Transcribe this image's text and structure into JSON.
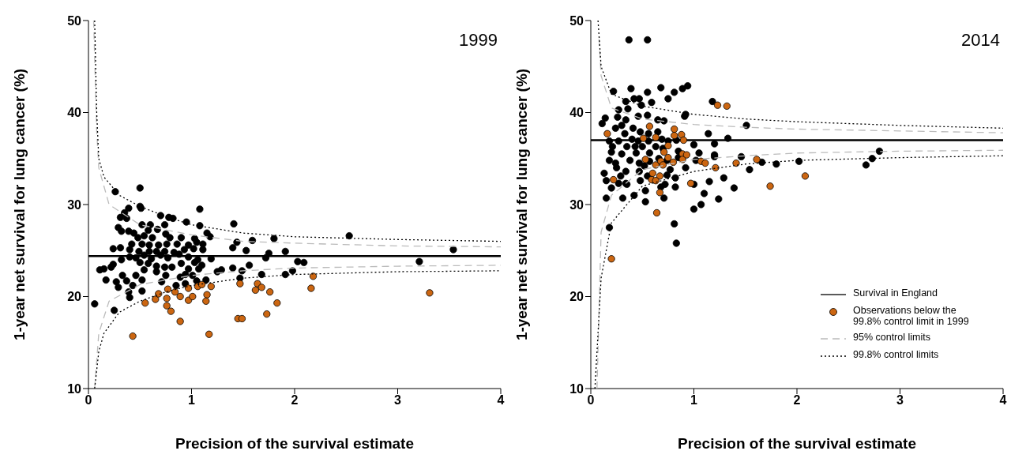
{
  "chart_data": [
    {
      "type": "scatter",
      "annotations": [
        "1999"
      ],
      "xlabel": "Precision of the survival estimate",
      "ylabel": "1-year net survival for lung cancer (%)",
      "xlim": [
        0,
        4
      ],
      "xticks": [
        0,
        1,
        2,
        3,
        4
      ],
      "ylim": [
        10,
        50
      ],
      "yticks": [
        10,
        20,
        30,
        40,
        50
      ],
      "grid": false,
      "legend": false,
      "marker": "circle",
      "ref_lines": [
        {
          "axis": "y",
          "value": 24.4,
          "color": "#000000",
          "line_style": "solid"
        }
      ],
      "series": [
        {
          "color": "#000000",
          "x": [
            0.5,
            0.26,
            0.39,
            0.5,
            0.51,
            1.08,
            0.7,
            0.78,
            0.82,
            0.35,
            0.31,
            0.37,
            0.52,
            0.6,
            0.74,
            0.95,
            1.08,
            1.41,
            0.29,
            0.32,
            0.39,
            0.44,
            0.58,
            0.67,
            0.75,
            1.15,
            0.48,
            0.54,
            0.62,
            0.79,
            0.9,
            1.03,
            1.18,
            1.59,
            1.8,
            1.44,
            1.4,
            1.53,
            0.42,
            0.52,
            0.59,
            0.68,
            0.76,
            0.86,
            0.97,
            1.05,
            1.11,
            0.24,
            0.31,
            0.4,
            0.49,
            0.59,
            0.66,
            0.74,
            0.83,
            0.93,
            1.02,
            1.11,
            1.75,
            1.91,
            0.4,
            0.46,
            0.54,
            0.61,
            0.7,
            0.77,
            0.88,
            0.97,
            1.06,
            1.19,
            1.72,
            0.32,
            0.24,
            0.5,
            0.58,
            0.66,
            0.74,
            0.81,
            0.9,
            1.03,
            1.1,
            2.03,
            2.09,
            0.11,
            0.15,
            0.22,
            0.54,
            0.66,
            0.97,
            1.07,
            1.25,
            1.29,
            1.4,
            1.56,
            1.49,
            0.17,
            0.27,
            0.33,
            0.37,
            0.46,
            0.52,
            0.75,
            0.89,
            0.94,
            1.01,
            1.05,
            1.14,
            1.47,
            1.68,
            1.91,
            1.98,
            0.29,
            0.43,
            0.52,
            0.71,
            0.85,
            0.94,
            0.4,
            0.06,
            0.25,
            0.39,
            2.53,
            3.21,
            3.54
          ],
          "values": [
            31.8,
            31.4,
            29.6,
            29.8,
            29.6,
            29.5,
            28.8,
            28.6,
            28.5,
            29.1,
            28.6,
            28.5,
            27.8,
            27.8,
            27.8,
            28.1,
            27.7,
            27.9,
            27.5,
            27.1,
            27.1,
            26.9,
            27.2,
            27.3,
            26.8,
            26.9,
            26.4,
            26.6,
            26.4,
            26.4,
            26.4,
            26.3,
            26.5,
            26.1,
            26.3,
            25.9,
            25.3,
            25.0,
            25.7,
            25.7,
            25.6,
            25.6,
            25.7,
            25.7,
            25.6,
            25.9,
            25.7,
            25.2,
            25.3,
            25.1,
            24.9,
            24.9,
            24.9,
            24.9,
            24.8,
            25.1,
            25.2,
            25.1,
            24.7,
            24.9,
            24.3,
            24.2,
            24.5,
            24.1,
            24.5,
            24.2,
            24.6,
            24.3,
            24.0,
            24.1,
            24.2,
            24.0,
            23.5,
            23.7,
            23.6,
            23.3,
            23.2,
            23.2,
            23.6,
            23.7,
            23.4,
            23.8,
            23.7,
            22.9,
            23.0,
            23.2,
            22.9,
            22.7,
            23.0,
            23.0,
            22.7,
            22.9,
            23.1,
            23.4,
            22.8,
            21.8,
            21.6,
            22.3,
            21.7,
            22.3,
            21.8,
            22.3,
            22.1,
            22.4,
            22.3,
            21.7,
            21.8,
            22.0,
            22.4,
            22.4,
            22.8,
            21.0,
            21.2,
            20.6,
            21.6,
            21.2,
            21.4,
            19.9,
            19.2,
            18.5,
            20.5,
            26.6,
            23.8,
            25.1
          ]
        },
        {
          "color": "#cc6611",
          "x": [
            0.43,
            0.55,
            0.65,
            0.68,
            0.76,
            0.76,
            0.8,
            0.77,
            0.84,
            0.89,
            0.89,
            0.97,
            1.01,
            0.97,
            1.06,
            1.1,
            1.15,
            1.14,
            1.19,
            1.17,
            1.47,
            1.45,
            1.49,
            1.64,
            1.62,
            1.68,
            1.76,
            1.73,
            1.83,
            2.18,
            2.16,
            3.31
          ],
          "values": [
            15.7,
            19.3,
            19.7,
            20.3,
            19.8,
            19.0,
            18.4,
            20.8,
            20.5,
            20.0,
            17.3,
            19.6,
            20.0,
            20.9,
            21.1,
            21.3,
            20.2,
            19.5,
            21.1,
            15.9,
            21.4,
            17.6,
            17.6,
            21.4,
            20.7,
            21.0,
            20.5,
            18.1,
            19.3,
            22.2,
            20.9,
            20.4
          ]
        },
        {
          "type": "line",
          "line_style": "dashed",
          "marker": "none",
          "color": "#bbbbbb",
          "x": [
            0.05,
            0.08,
            0.1,
            0.2,
            0.5,
            1,
            1.5,
            2,
            3,
            4
          ],
          "values": [
            50,
            38,
            34,
            30,
            27.8,
            26.7,
            26.0,
            25.8,
            25.5,
            25.4
          ]
        },
        {
          "type": "line",
          "line_style": "dashed",
          "marker": "none",
          "color": "#bbbbbb",
          "x": [
            0.06,
            0.1,
            0.2,
            0.5,
            1,
            1.5,
            2,
            3,
            4
          ],
          "values": [
            10,
            16,
            19.5,
            21.3,
            22.3,
            22.8,
            23.1,
            23.3,
            23.4
          ]
        },
        {
          "type": "line",
          "line_style": "dotted",
          "marker": "none",
          "color": "#000000",
          "x": [
            0.06,
            0.08,
            0.1,
            0.15,
            0.3,
            0.5,
            0.75,
            1,
            1.5,
            2,
            3,
            4
          ],
          "values": [
            50,
            40,
            35,
            33,
            31,
            29.8,
            28.7,
            27.8,
            26.9,
            26.5,
            26.2,
            26.0
          ]
        },
        {
          "type": "line",
          "line_style": "dotted",
          "marker": "none",
          "color": "#000000",
          "x": [
            0.06,
            0.1,
            0.15,
            0.3,
            0.5,
            0.75,
            1,
            1.5,
            2,
            3,
            4
          ],
          "values": [
            10,
            14,
            16,
            18.3,
            19.5,
            20.5,
            21.2,
            22,
            22.4,
            22.7,
            22.8
          ]
        }
      ]
    },
    {
      "type": "scatter",
      "annotations": [
        "2014"
      ],
      "xlabel": "Precision of the survival estimate",
      "ylabel": "1-year net survival for lung cancer (%)",
      "xlim": [
        0,
        4
      ],
      "xticks": [
        0,
        1,
        2,
        3,
        4
      ],
      "ylim": [
        10,
        50
      ],
      "yticks": [
        10,
        20,
        30,
        40,
        50
      ],
      "grid": false,
      "legend": "bottom right",
      "marker": "circle",
      "ref_lines": [
        {
          "axis": "y",
          "value": 37,
          "label": "Survival in England",
          "color": "#000000",
          "line_style": "solid"
        }
      ],
      "series": [
        {
          "color": "#000000",
          "x": [
            0.37,
            0.55,
            0.39,
            0.22,
            0.55,
            0.68,
            0.75,
            0.81,
            0.89,
            0.94,
            0.34,
            0.42,
            0.47,
            0.49,
            0.59,
            1.18,
            0.27,
            0.36,
            0.91,
            0.92,
            0.14,
            0.26,
            0.34,
            0.46,
            0.55,
            0.65,
            0.71,
            0.11,
            0.24,
            0.3,
            0.41,
            0.48,
            0.65,
            0.56,
            0.33,
            1.14,
            1.33,
            0.18,
            0.27,
            0.4,
            0.46,
            0.56,
            0.69,
            0.75,
            0.83,
            0.21,
            0.35,
            0.43,
            0.5,
            0.63,
            0.7,
            1.0,
            1.2,
            0.2,
            0.3,
            0.44,
            0.57,
            0.85,
            1.05,
            1.2,
            0.18,
            0.24,
            0.38,
            0.47,
            0.57,
            0.66,
            0.74,
            0.85,
            1.02,
            1.2,
            0.25,
            0.34,
            0.52,
            0.77,
            0.92,
            0.13,
            0.29,
            0.47,
            0.55,
            0.74,
            0.82,
            0.15,
            0.27,
            0.35,
            0.48,
            0.72,
            1.0,
            1.15,
            1.29,
            0.2,
            0.34,
            0.53,
            0.68,
            0.82,
            1.1,
            1.39,
            0.15,
            0.31,
            0.42,
            0.53,
            0.71,
            1.24,
            1.0,
            1.07,
            0.18,
            0.81,
            0.83,
            1.51,
            1.46,
            1.54,
            1.66,
            1.8,
            2.02,
            2.67,
            2.73,
            2.8
          ],
          "values": [
            47.9,
            47.9,
            42.6,
            42.3,
            42.2,
            42.7,
            41.5,
            42.2,
            42.6,
            42.9,
            41.2,
            41.5,
            41.5,
            40.8,
            41.1,
            41.2,
            40.3,
            40.4,
            39.6,
            39.8,
            39.4,
            39.5,
            39.2,
            39.6,
            39.7,
            39.2,
            39.1,
            38.8,
            38.3,
            38.6,
            38.3,
            37.9,
            37.9,
            37.7,
            37.7,
            37.7,
            37.2,
            36.9,
            36.9,
            37.1,
            36.9,
            36.9,
            37.1,
            36.9,
            37.0,
            36.3,
            36.3,
            36.3,
            36.3,
            36.3,
            36.1,
            36.5,
            36.6,
            35.7,
            35.5,
            35.6,
            35.6,
            35.8,
            35.6,
            35.4,
            34.8,
            34.5,
            34.8,
            34.5,
            34.7,
            35.0,
            34.8,
            35.1,
            34.8,
            35.2,
            34.0,
            33.6,
            34.2,
            33.8,
            34.0,
            33.4,
            33.1,
            33.6,
            33.1,
            33.2,
            32.9,
            32.6,
            32.3,
            32.2,
            32.6,
            32.2,
            32.2,
            32.5,
            32.9,
            31.8,
            32.3,
            31.5,
            31.9,
            31.9,
            31.2,
            31.8,
            30.7,
            30.7,
            31.0,
            30.3,
            30.7,
            30.6,
            29.5,
            30.0,
            27.5,
            27.9,
            25.8,
            38.6,
            35.2,
            33.8,
            34.6,
            34.4,
            34.7,
            34.3,
            35.0,
            35.8
          ]
        },
        {
          "name": "Observations below the 99.8% control limit in 1999",
          "color": "#cc6611",
          "x": [
            0.16,
            0.22,
            0.57,
            0.51,
            0.63,
            0.81,
            0.88,
            0.81,
            0.9,
            0.75,
            0.71,
            0.75,
            0.8,
            0.89,
            0.89,
            0.93,
            0.53,
            0.63,
            0.68,
            0.7,
            0.6,
            0.67,
            0.59,
            0.63,
            0.67,
            0.64,
            0.97,
            1.07,
            1.11,
            1.21,
            1.41,
            1.23,
            1.32,
            1.61,
            1.74,
            2.08,
            0.2
          ],
          "values": [
            37.7,
            32.7,
            38.5,
            37.2,
            37.3,
            38.2,
            37.6,
            37.5,
            37.0,
            36.4,
            35.7,
            35.1,
            34.6,
            35.5,
            34.9,
            35.4,
            34.9,
            34.3,
            34.7,
            34.3,
            33.4,
            33.1,
            32.7,
            32.6,
            31.3,
            29.1,
            32.3,
            34.7,
            34.5,
            34.0,
            34.5,
            40.8,
            40.7,
            34.9,
            32.0,
            33.1,
            24.1
          ]
        },
        {
          "name": "95% control limits",
          "type": "line",
          "line_style": "dashed",
          "marker": "none",
          "color": "#bbbbbb",
          "x": [
            0.08,
            0.1,
            0.2,
            0.5,
            1,
            1.5,
            2,
            3,
            4
          ],
          "values": [
            48,
            44,
            40.5,
            39.3,
            38.7,
            38.4,
            38.2,
            38.0,
            37.8
          ]
        },
        {
          "type": "line",
          "line_style": "dashed",
          "marker": "none",
          "color": "#bbbbbb",
          "x": [
            0.06,
            0.1,
            0.2,
            0.5,
            1,
            1.5,
            2,
            3,
            4
          ],
          "values": [
            10,
            27,
            31,
            33.8,
            34.9,
            35.3,
            35.6,
            35.8,
            35.9
          ]
        },
        {
          "name": "99.8% control limits",
          "type": "line",
          "line_style": "dotted",
          "marker": "none",
          "color": "#000000",
          "x": [
            0.07,
            0.1,
            0.2,
            0.5,
            1,
            1.5,
            2,
            3,
            4
          ],
          "values": [
            50,
            45,
            42,
            40.7,
            39.8,
            39.3,
            39.0,
            38.6,
            38.3
          ]
        },
        {
          "type": "line",
          "line_style": "dotted",
          "marker": "none",
          "color": "#000000",
          "x": [
            0.04,
            0.1,
            0.2,
            0.5,
            1,
            1.5,
            2,
            3,
            4
          ],
          "values": [
            10,
            22,
            28,
            32,
            33.6,
            34.4,
            34.8,
            35.1,
            35.3
          ]
        }
      ]
    }
  ]
}
